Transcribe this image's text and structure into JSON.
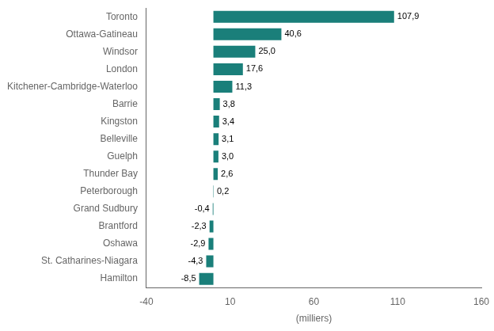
{
  "chart_data": {
    "type": "bar",
    "orientation": "horizontal",
    "categories": [
      "Hamilton",
      "St. Catharines-Niagara",
      "Oshawa",
      "Brantford",
      "Grand Sudbury",
      "Peterborough",
      "Thunder Bay",
      "Guelph",
      "Belleville",
      "Kingston",
      "Barrie",
      "Kitchener-Cambridge-Waterloo",
      "London",
      "Windsor",
      "Ottawa-Gatineau",
      "Toronto"
    ],
    "values": [
      -8.5,
      -4.3,
      -2.9,
      -2.3,
      -0.4,
      0.2,
      2.6,
      3.0,
      3.1,
      3.4,
      3.8,
      11.3,
      17.6,
      25.0,
      40.6,
      107.9
    ],
    "value_labels": [
      "-8,5",
      "-4,3",
      "-2,9",
      "-2,3",
      "-0,4",
      "0,2",
      "2,6",
      "3,0",
      "3,1",
      "3,4",
      "3,8",
      "11,3",
      "17,6",
      "25,0",
      "40,6",
      "107,9"
    ],
    "data_labels": true,
    "color": "#1a7f7a",
    "xlabel": "(milliers)",
    "xlim": [
      -40,
      160
    ],
    "xticks": [
      -40,
      10,
      60,
      110,
      160
    ],
    "grid": false
  }
}
